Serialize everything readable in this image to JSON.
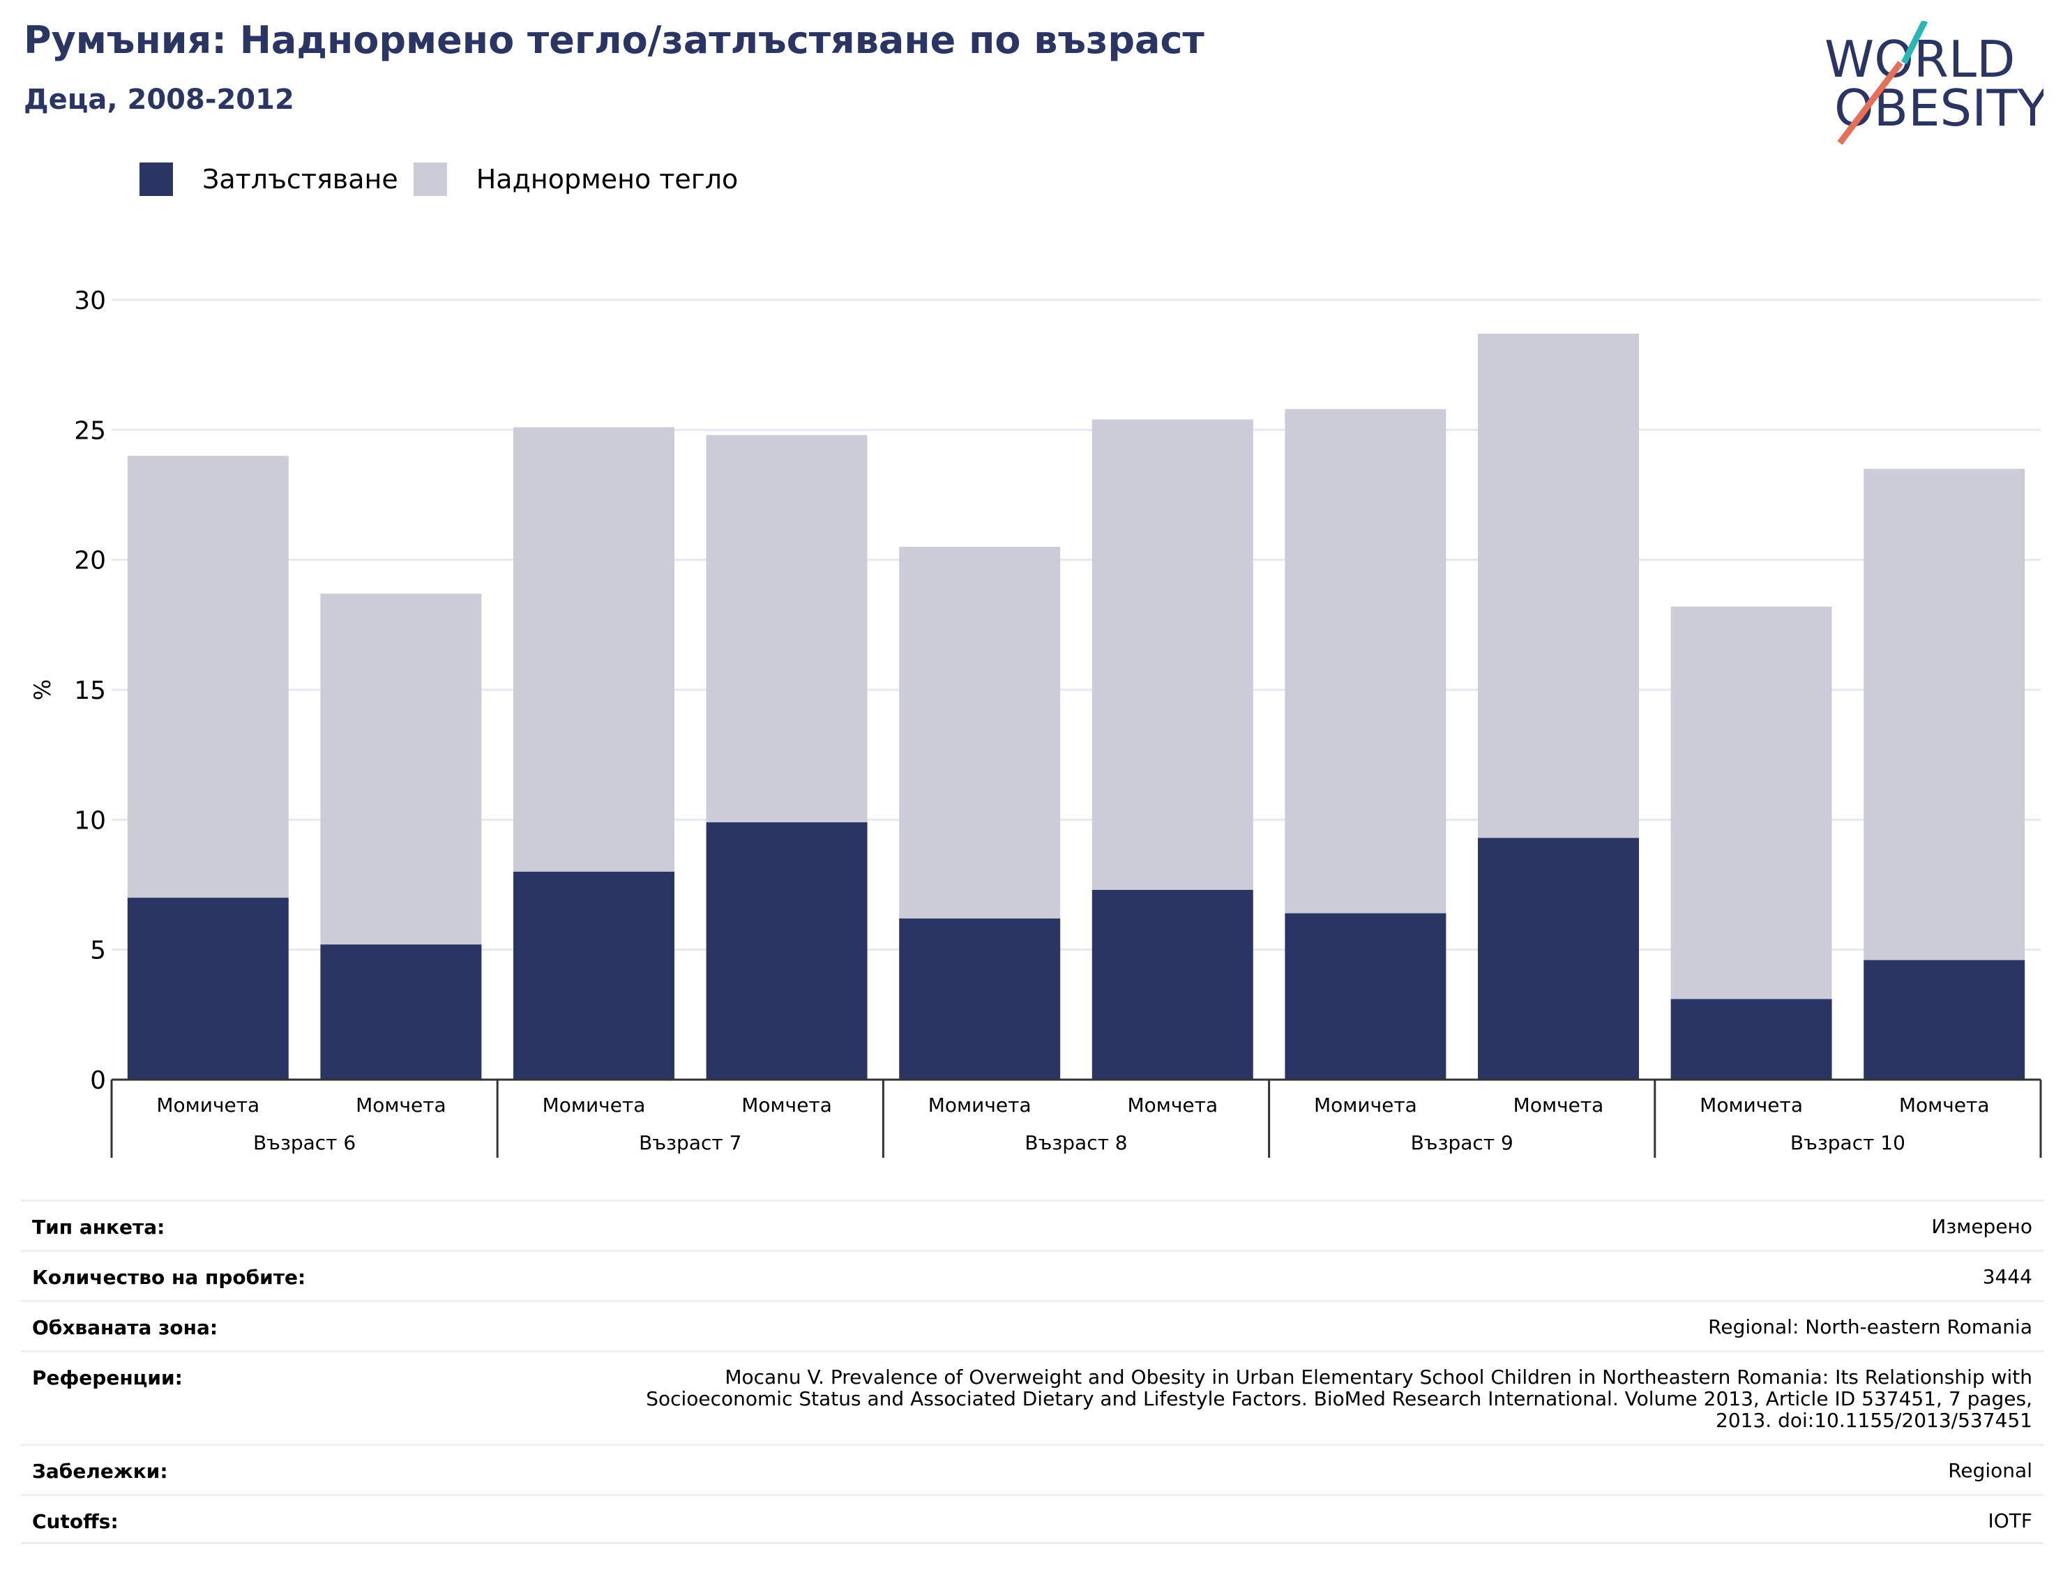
{
  "title": "Румъния: Наднормено тегло/затлъстяване по възраст",
  "subtitle": "Деца, 2008-2012",
  "logo": {
    "line1": "WORLD",
    "line2": "OBESITY"
  },
  "colors": {
    "obesity": "#2b3564",
    "overweight": "#cbccd8",
    "title": "#2b3564",
    "logo_teal": "#2bb5b5",
    "logo_coral": "#e4705a"
  },
  "legend": [
    {
      "label": "Затлъстяване",
      "color": "#2b3564"
    },
    {
      "label": "Наднормено тегло",
      "color": "#cbccd8"
    }
  ],
  "chart_data": {
    "type": "bar",
    "stacked": true,
    "ylabel": "%",
    "ylim": [
      0,
      30
    ],
    "yticks": [
      0,
      5,
      10,
      15,
      20,
      25,
      30
    ],
    "grid": true,
    "groups": [
      {
        "label": "Възраст 6",
        "categories": [
          "Момичета",
          "Момчета"
        ]
      },
      {
        "label": "Възраст 7",
        "categories": [
          "Момичета",
          "Момчета"
        ]
      },
      {
        "label": "Възраст 8",
        "categories": [
          "Момичета",
          "Момчета"
        ]
      },
      {
        "label": "Възраст 9",
        "categories": [
          "Момичета",
          "Момчета"
        ]
      },
      {
        "label": "Възраст 10",
        "categories": [
          "Момичета",
          "Момчета"
        ]
      }
    ],
    "series": [
      {
        "name": "Затлъстяване",
        "values": [
          7.0,
          5.2,
          8.0,
          9.9,
          6.2,
          7.3,
          6.4,
          9.3,
          3.1,
          4.6
        ]
      },
      {
        "name": "Наднормено тегло",
        "values": [
          17.0,
          13.5,
          17.1,
          14.9,
          14.3,
          18.1,
          19.4,
          19.4,
          15.1,
          18.9
        ]
      }
    ]
  },
  "info": [
    {
      "label": "Тип анкета:",
      "value": "Измерено"
    },
    {
      "label": "Количество на пробите:",
      "value": "3444"
    },
    {
      "label": "Обхваната зона:",
      "value": "Regional: North-eastern Romania"
    },
    {
      "label": "Референции:",
      "value": "Mocanu V. Prevalence of Overweight and Obesity in Urban Elementary School Children in Northeastern Romania: Its Relationship with\nSocioeconomic Status and Associated Dietary and Lifestyle Factors. BioMed Research International. Volume 2013, Article ID 537451, 7 pages,\n2013. doi:10.1155/2013/537451"
    },
    {
      "label": "Забележки:",
      "value": "Regional"
    },
    {
      "label": "Cutoffs:",
      "value": "IOTF"
    }
  ]
}
